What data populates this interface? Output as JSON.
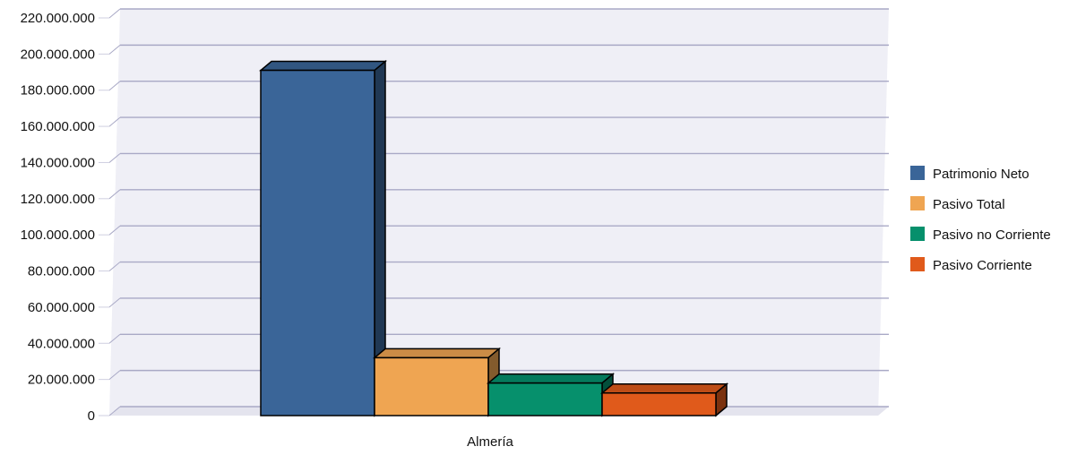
{
  "chart_data": {
    "type": "bar",
    "categories": [
      "Almería"
    ],
    "series": [
      {
        "name": "Patrimonio Neto",
        "values": [
          191000000
        ],
        "color": "#3a6598"
      },
      {
        "name": "Pasivo Total",
        "values": [
          32000000
        ],
        "color": "#efa552"
      },
      {
        "name": "Pasivo no Corriente",
        "values": [
          18000000
        ],
        "color": "#06906c"
      },
      {
        "name": "Pasivo Corriente",
        "values": [
          12500000
        ],
        "color": "#e05a1b"
      }
    ],
    "yticks": [
      "0",
      "20.000.000",
      "40.000.000",
      "60.000.000",
      "80.000.000",
      "100.000.000",
      "120.000.000",
      "140.000.000",
      "160.000.000",
      "180.000.000",
      "200.000.000",
      "220.000.000"
    ],
    "ylim": [
      0,
      220000000
    ],
    "grid": true,
    "legend_position": "right",
    "three_d": true
  }
}
